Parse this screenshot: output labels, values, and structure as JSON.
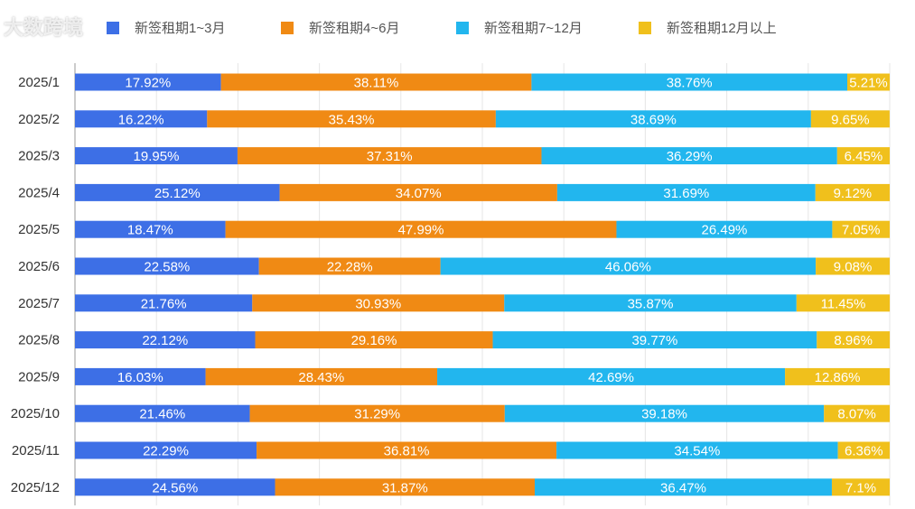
{
  "chart_data": {
    "type": "bar",
    "orientation": "horizontal",
    "stacked": true,
    "percent": true,
    "xlim": [
      0,
      100
    ],
    "grid": true,
    "legend_placement": "top",
    "categories": [
      "2025/1",
      "2025/2",
      "2025/3",
      "2025/4",
      "2025/5",
      "2025/6",
      "2025/7",
      "2025/8",
      "2025/9",
      "2025/10",
      "2025/11",
      "2025/12"
    ],
    "series": [
      {
        "name": "新签租期1~3月",
        "color": "#3d6fe6",
        "values": [
          17.92,
          16.22,
          19.95,
          25.12,
          18.47,
          22.58,
          21.76,
          22.12,
          16.03,
          21.46,
          22.29,
          24.56
        ]
      },
      {
        "name": "新签租期4~6月",
        "color": "#f08a14",
        "values": [
          38.11,
          35.43,
          37.31,
          34.07,
          47.99,
          22.28,
          30.93,
          29.16,
          28.43,
          31.29,
          36.81,
          31.87
        ]
      },
      {
        "name": "新签租期7~12月",
        "color": "#22b6ee",
        "values": [
          38.76,
          38.69,
          36.29,
          31.69,
          26.49,
          46.06,
          35.87,
          39.77,
          42.69,
          39.18,
          34.54,
          36.47
        ]
      },
      {
        "name": "新签租期12月以上",
        "color": "#f0c01c",
        "values": [
          5.21,
          9.65,
          6.45,
          9.12,
          7.05,
          9.08,
          11.45,
          8.96,
          12.86,
          8.07,
          6.36,
          7.1
        ]
      }
    ],
    "value_labels": [
      [
        "17.92%",
        "38.11%",
        "38.76%",
        "5.21%"
      ],
      [
        "16.22%",
        "35.43%",
        "38.69%",
        "9.65%"
      ],
      [
        "19.95%",
        "37.31%",
        "36.29%",
        "6.45%"
      ],
      [
        "25.12%",
        "34.07%",
        "31.69%",
        "9.12%"
      ],
      [
        "18.47%",
        "47.99%",
        "26.49%",
        "7.05%"
      ],
      [
        "22.58%",
        "22.28%",
        "46.06%",
        "9.08%"
      ],
      [
        "21.76%",
        "30.93%",
        "35.87%",
        "11.45%"
      ],
      [
        "22.12%",
        "29.16%",
        "39.77%",
        "8.96%"
      ],
      [
        "16.03%",
        "28.43%",
        "42.69%",
        "12.86%"
      ],
      [
        "21.46%",
        "31.29%",
        "39.18%",
        "8.07%"
      ],
      [
        "22.29%",
        "36.81%",
        "34.54%",
        "6.36%"
      ],
      [
        "24.56%",
        "31.87%",
        "36.47%",
        "7.1%"
      ]
    ]
  },
  "watermark": "大数跨境"
}
